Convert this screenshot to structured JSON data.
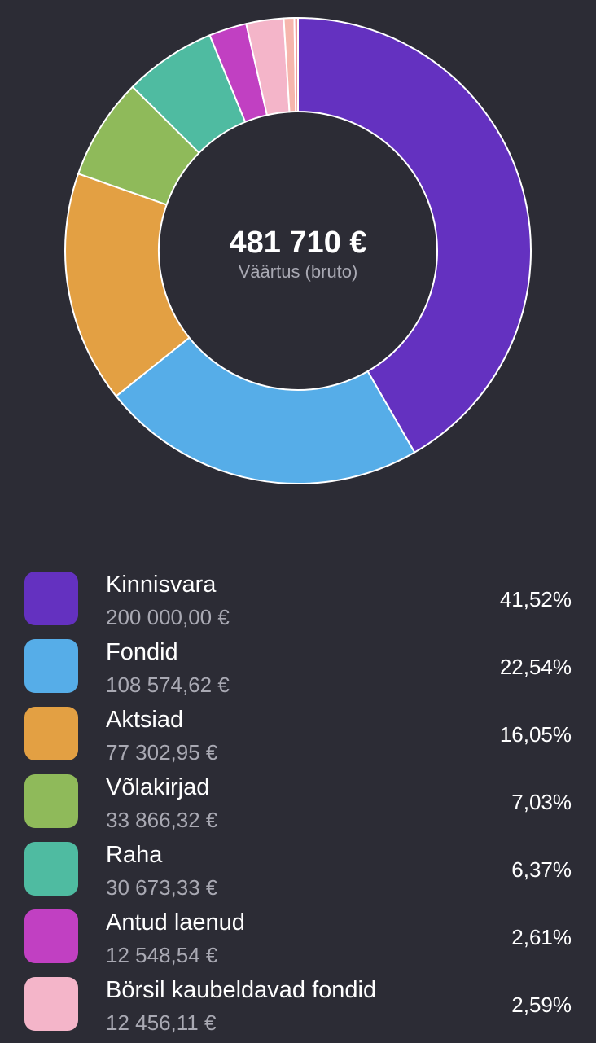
{
  "chart_data": {
    "type": "pie",
    "center_value": "481 710 €",
    "center_label": "Väärtus (bruto)",
    "slices": [
      {
        "label": "Kinnisvara",
        "value_text": "200 000,00 €",
        "value": 200000.0,
        "percent_text": "41,52%",
        "percent": 41.52,
        "color": "#6431c0"
      },
      {
        "label": "Fondid",
        "value_text": "108 574,62 €",
        "value": 108574.62,
        "percent_text": "22,54%",
        "percent": 22.54,
        "color": "#56ade8"
      },
      {
        "label": "Aktsiad",
        "value_text": "77 302,95 €",
        "value": 77302.95,
        "percent_text": "16,05%",
        "percent": 16.05,
        "color": "#e3a043"
      },
      {
        "label": "Võlakirjad",
        "value_text": "33 866,32 €",
        "value": 33866.32,
        "percent_text": "7,03%",
        "percent": 7.03,
        "color": "#8fba5a"
      },
      {
        "label": "Raha",
        "value_text": "30 673,33 €",
        "value": 30673.33,
        "percent_text": "6,37%",
        "percent": 6.37,
        "color": "#4fbba1"
      },
      {
        "label": "Antud laenud",
        "value_text": "12 548,54 €",
        "value": 12548.54,
        "percent_text": "2,61%",
        "percent": 2.61,
        "color": "#c140c2"
      },
      {
        "label": "Börsil kaubeldavad fondid",
        "value_text": "12 456,11 €",
        "value": 12456.11,
        "percent_text": "2,59%",
        "percent": 2.59,
        "color": "#f4b5c9"
      },
      {
        "label": "",
        "value_text": "",
        "value": 3500,
        "percent_text": "",
        "percent": 0.73,
        "color": "#f6b6ad"
      },
      {
        "label": "",
        "value_text": "",
        "value": 1200,
        "percent_text": "",
        "percent": 0.25,
        "color": "#ef9a9a"
      }
    ]
  }
}
